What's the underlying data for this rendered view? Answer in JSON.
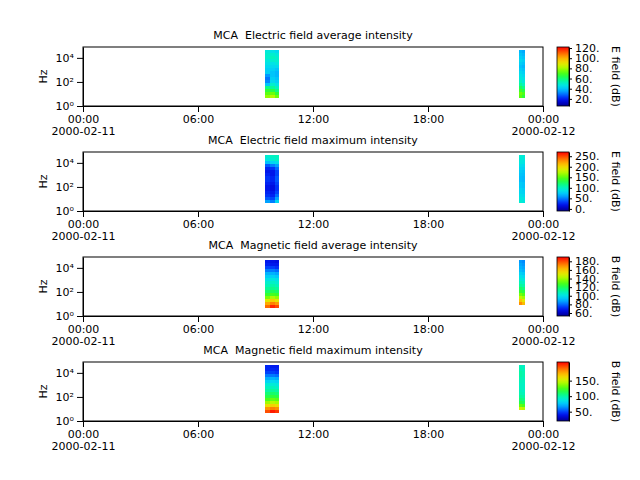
{
  "chart_data": [
    {
      "type": "heatmap",
      "title": "MCA  Electric field average intensity",
      "ylabel": "Hz",
      "colorbar_label": "E field (dB)",
      "log": "y",
      "xlim": [
        "2000-02-11T00:00",
        "2000-02-12T00:00"
      ],
      "xticks": [
        {
          "value": "2000-02-11T00:00",
          "label": "00:00\n2000-02-11"
        },
        {
          "value": "2000-02-11T06:00",
          "label": "06:00"
        },
        {
          "value": "2000-02-11T12:00",
          "label": "12:00"
        },
        {
          "value": "2000-02-11T18:00",
          "label": "18:00"
        },
        {
          "value": "2000-02-12T00:00",
          "label": "00:00\n2000-02-12"
        }
      ],
      "ylim": [
        1,
        80000
      ],
      "yticks": [
        {
          "value": 1,
          "label": "10⁰"
        },
        {
          "value": 100,
          "label": "10²"
        },
        {
          "value": 10000,
          "label": "10⁴"
        }
      ],
      "x": [
        "2000-02-11T09:30",
        "2000-02-11T09:45",
        "2000-02-11T10:00",
        "2000-02-11T22:45",
        "2000-02-11T22:55"
      ],
      "x_end": [
        "2000-02-11T09:45",
        "2000-02-11T10:00",
        "2000-02-11T10:15",
        "2000-02-11T22:55",
        "2000-02-11T23:05"
      ],
      "y_edges": [
        4.22,
        7.5,
        13.3,
        23.7,
        42.2,
        75,
        133,
        237,
        422,
        750,
        1330,
        2370,
        4220,
        7500,
        13300,
        23700,
        42200
      ],
      "z": [
        [
          78,
          72,
          66,
          58,
          40,
          32,
          30,
          34,
          42,
          42,
          44,
          46,
          48,
          50,
          50,
          48
        ],
        [
          82,
          74,
          64,
          56,
          50,
          44,
          42,
          40,
          40,
          42,
          44,
          46,
          50,
          52,
          50,
          46
        ],
        [
          74,
          66,
          58,
          52,
          46,
          42,
          40,
          38,
          38,
          40,
          44,
          48,
          50,
          50,
          48,
          44
        ],
        [
          72,
          74,
          68,
          62,
          56,
          52,
          48,
          46,
          44,
          42,
          40,
          42,
          44,
          42,
          40,
          38
        ],
        [
          66,
          70,
          64,
          58,
          52,
          48,
          46,
          44,
          42,
          40,
          38,
          40,
          42,
          40,
          38,
          36
        ]
      ],
      "zlim": [
        6,
        122
      ],
      "zticks": [
        {
          "value": 20,
          "label": "20."
        },
        {
          "value": 40,
          "label": "40."
        },
        {
          "value": 60,
          "label": "60."
        },
        {
          "value": 80,
          "label": "80."
        },
        {
          "value": 100,
          "label": "100."
        },
        {
          "value": 120,
          "label": "120."
        }
      ]
    },
    {
      "type": "heatmap",
      "title": "MCA  Electric field maximum intensity",
      "ylabel": "Hz",
      "colorbar_label": "E field (dB)",
      "log": "y",
      "xlim": [
        "2000-02-11T00:00",
        "2000-02-12T00:00"
      ],
      "xticks": [
        {
          "value": "2000-02-11T00:00",
          "label": "00:00\n2000-02-11"
        },
        {
          "value": "2000-02-11T06:00",
          "label": "06:00"
        },
        {
          "value": "2000-02-11T12:00",
          "label": "12:00"
        },
        {
          "value": "2000-02-11T18:00",
          "label": "18:00"
        },
        {
          "value": "2000-02-12T00:00",
          "label": "00:00\n2000-02-12"
        }
      ],
      "ylim": [
        1,
        80000
      ],
      "yticks": [
        {
          "value": 1,
          "label": "10⁰"
        },
        {
          "value": 100,
          "label": "10²"
        },
        {
          "value": 10000,
          "label": "10⁴"
        }
      ],
      "x": [
        "2000-02-11T09:30",
        "2000-02-11T09:45",
        "2000-02-11T10:00",
        "2000-02-11T22:45",
        "2000-02-11T22:55"
      ],
      "x_end": [
        "2000-02-11T09:45",
        "2000-02-11T10:00",
        "2000-02-11T10:15",
        "2000-02-11T22:55",
        "2000-02-11T23:05"
      ],
      "y_edges": [
        4.22,
        7.5,
        13.3,
        23.7,
        42.2,
        75,
        133,
        237,
        422,
        750,
        1330,
        2370,
        4220,
        7500,
        13300,
        23700,
        42200
      ],
      "z": [
        [
          60,
          40,
          30,
          25,
          20,
          20,
          25,
          30,
          30,
          25,
          20,
          25,
          40,
          70,
          90,
          95
        ],
        [
          50,
          35,
          25,
          20,
          15,
          15,
          20,
          25,
          25,
          20,
          20,
          30,
          50,
          80,
          95,
          100
        ],
        [
          80,
          60,
          45,
          35,
          30,
          30,
          35,
          40,
          40,
          35,
          35,
          45,
          60,
          85,
          100,
          100
        ],
        [
          95,
          90,
          85,
          80,
          80,
          75,
          75,
          70,
          70,
          72,
          75,
          80,
          85,
          90,
          92,
          95
        ],
        [
          90,
          88,
          82,
          78,
          76,
          72,
          72,
          68,
          68,
          70,
          72,
          78,
          82,
          88,
          90,
          92
        ]
      ],
      "zlim": [
        -10,
        270
      ],
      "zticks": [
        {
          "value": 0,
          "label": "0."
        },
        {
          "value": 50,
          "label": "50."
        },
        {
          "value": 100,
          "label": "100."
        },
        {
          "value": 150,
          "label": "150."
        },
        {
          "value": 200,
          "label": "200."
        },
        {
          "value": 250,
          "label": "250."
        }
      ]
    },
    {
      "type": "heatmap",
      "title": "MCA  Magnetic field average intensity",
      "ylabel": "Hz",
      "colorbar_label": "B field (dB)",
      "log": "y",
      "xlim": [
        "2000-02-11T00:00",
        "2000-02-12T00:00"
      ],
      "xticks": [
        {
          "value": "2000-02-11T00:00",
          "label": "00:00\n2000-02-11"
        },
        {
          "value": "2000-02-11T06:00",
          "label": "06:00"
        },
        {
          "value": "2000-02-11T12:00",
          "label": "12:00"
        },
        {
          "value": "2000-02-11T18:00",
          "label": "18:00"
        },
        {
          "value": "2000-02-12T00:00",
          "label": "00:00\n2000-02-12"
        }
      ],
      "ylim": [
        1,
        80000
      ],
      "yticks": [
        {
          "value": 1,
          "label": "10⁰"
        },
        {
          "value": 100,
          "label": "10²"
        },
        {
          "value": 10000,
          "label": "10⁴"
        }
      ],
      "x": [
        "2000-02-11T09:30",
        "2000-02-11T09:45",
        "2000-02-11T10:00",
        "2000-02-11T22:45",
        "2000-02-11T22:55"
      ],
      "x_end": [
        "2000-02-11T09:45",
        "2000-02-11T10:00",
        "2000-02-11T10:15",
        "2000-02-11T22:55",
        "2000-02-11T23:05"
      ],
      "y_edges": [
        4.22,
        7.5,
        13.3,
        23.7,
        42.2,
        75,
        133,
        237,
        422,
        750,
        1330,
        2370,
        4220,
        7500,
        13300,
        23700,
        42200
      ],
      "z": [
        [
          175,
          165,
          150,
          135,
          125,
          118,
          112,
          108,
          105,
          100,
          95,
          90,
          82,
          75,
          70,
          68
        ],
        [
          185,
          172,
          158,
          142,
          128,
          120,
          114,
          110,
          106,
          102,
          96,
          90,
          82,
          74,
          68,
          66
        ],
        [
          180,
          168,
          152,
          138,
          126,
          118,
          112,
          108,
          104,
          100,
          94,
          88,
          80,
          72,
          68,
          65
        ],
        [
          null,
          170,
          160,
          145,
          135,
          125,
          118,
          112,
          108,
          104,
          100,
          96,
          92,
          90,
          88,
          86
        ],
        [
          null,
          162,
          152,
          140,
          130,
          122,
          115,
          110,
          106,
          102,
          98,
          94,
          90,
          88,
          86,
          84
        ]
      ],
      "zlim": [
        53,
        190
      ],
      "zticks": [
        {
          "value": 60,
          "label": "60."
        },
        {
          "value": 80,
          "label": "80."
        },
        {
          "value": 100,
          "label": "100."
        },
        {
          "value": 120,
          "label": "120."
        },
        {
          "value": 140,
          "label": "140."
        },
        {
          "value": 160,
          "label": "160."
        },
        {
          "value": 180,
          "label": "180."
        }
      ]
    },
    {
      "type": "heatmap",
      "title": "MCA  Magnetic field maximum intensity",
      "ylabel": "Hz",
      "colorbar_label": "B field (dB)",
      "log": "y",
      "xlim": [
        "2000-02-11T00:00",
        "2000-02-12T00:00"
      ],
      "xticks": [
        {
          "value": "2000-02-11T00:00",
          "label": "00:00\n2000-02-11"
        },
        {
          "value": "2000-02-11T06:00",
          "label": "06:00"
        },
        {
          "value": "2000-02-11T12:00",
          "label": "12:00"
        },
        {
          "value": "2000-02-11T18:00",
          "label": "18:00"
        },
        {
          "value": "2000-02-12T00:00",
          "label": "00:00\n2000-02-12"
        }
      ],
      "ylim": [
        1,
        80000
      ],
      "yticks": [
        {
          "value": 1,
          "label": "10⁰"
        },
        {
          "value": 100,
          "label": "10²"
        },
        {
          "value": 10000,
          "label": "10⁴"
        }
      ],
      "x": [
        "2000-02-11T09:30",
        "2000-02-11T09:45",
        "2000-02-11T10:00",
        "2000-02-11T22:45",
        "2000-02-11T22:55"
      ],
      "x_end": [
        "2000-02-11T09:45",
        "2000-02-11T10:00",
        "2000-02-11T10:15",
        "2000-02-11T22:55",
        "2000-02-11T23:05"
      ],
      "y_edges": [
        4.22,
        7.5,
        13.3,
        23.7,
        42.2,
        75,
        133,
        237,
        422,
        750,
        1330,
        2370,
        4220,
        7500,
        13300,
        23700,
        42200
      ],
      "z": [
        [
          195,
          180,
          160,
          140,
          125,
          115,
          108,
          100,
          95,
          90,
          80,
          70,
          60,
          50,
          45,
          45
        ],
        [
          205,
          185,
          165,
          145,
          130,
          118,
          110,
          102,
          96,
          90,
          82,
          72,
          60,
          50,
          45,
          42
        ],
        [
          200,
          182,
          162,
          142,
          128,
          116,
          108,
          100,
          94,
          88,
          80,
          70,
          58,
          48,
          44,
          42
        ],
        [
          null,
          150,
          130,
          115,
          108,
          102,
          98,
          96,
          95,
          95,
          96,
          98,
          100,
          100,
          98,
          96
        ],
        [
          null,
          145,
          125,
          112,
          105,
          100,
          96,
          94,
          94,
          94,
          95,
          96,
          98,
          98,
          96,
          94
        ]
      ],
      "zlim": [
        20,
        210
      ],
      "zticks": [
        {
          "value": 50,
          "label": "50."
        },
        {
          "value": 100,
          "label": "100."
        },
        {
          "value": 150,
          "label": "150."
        }
      ]
    }
  ]
}
